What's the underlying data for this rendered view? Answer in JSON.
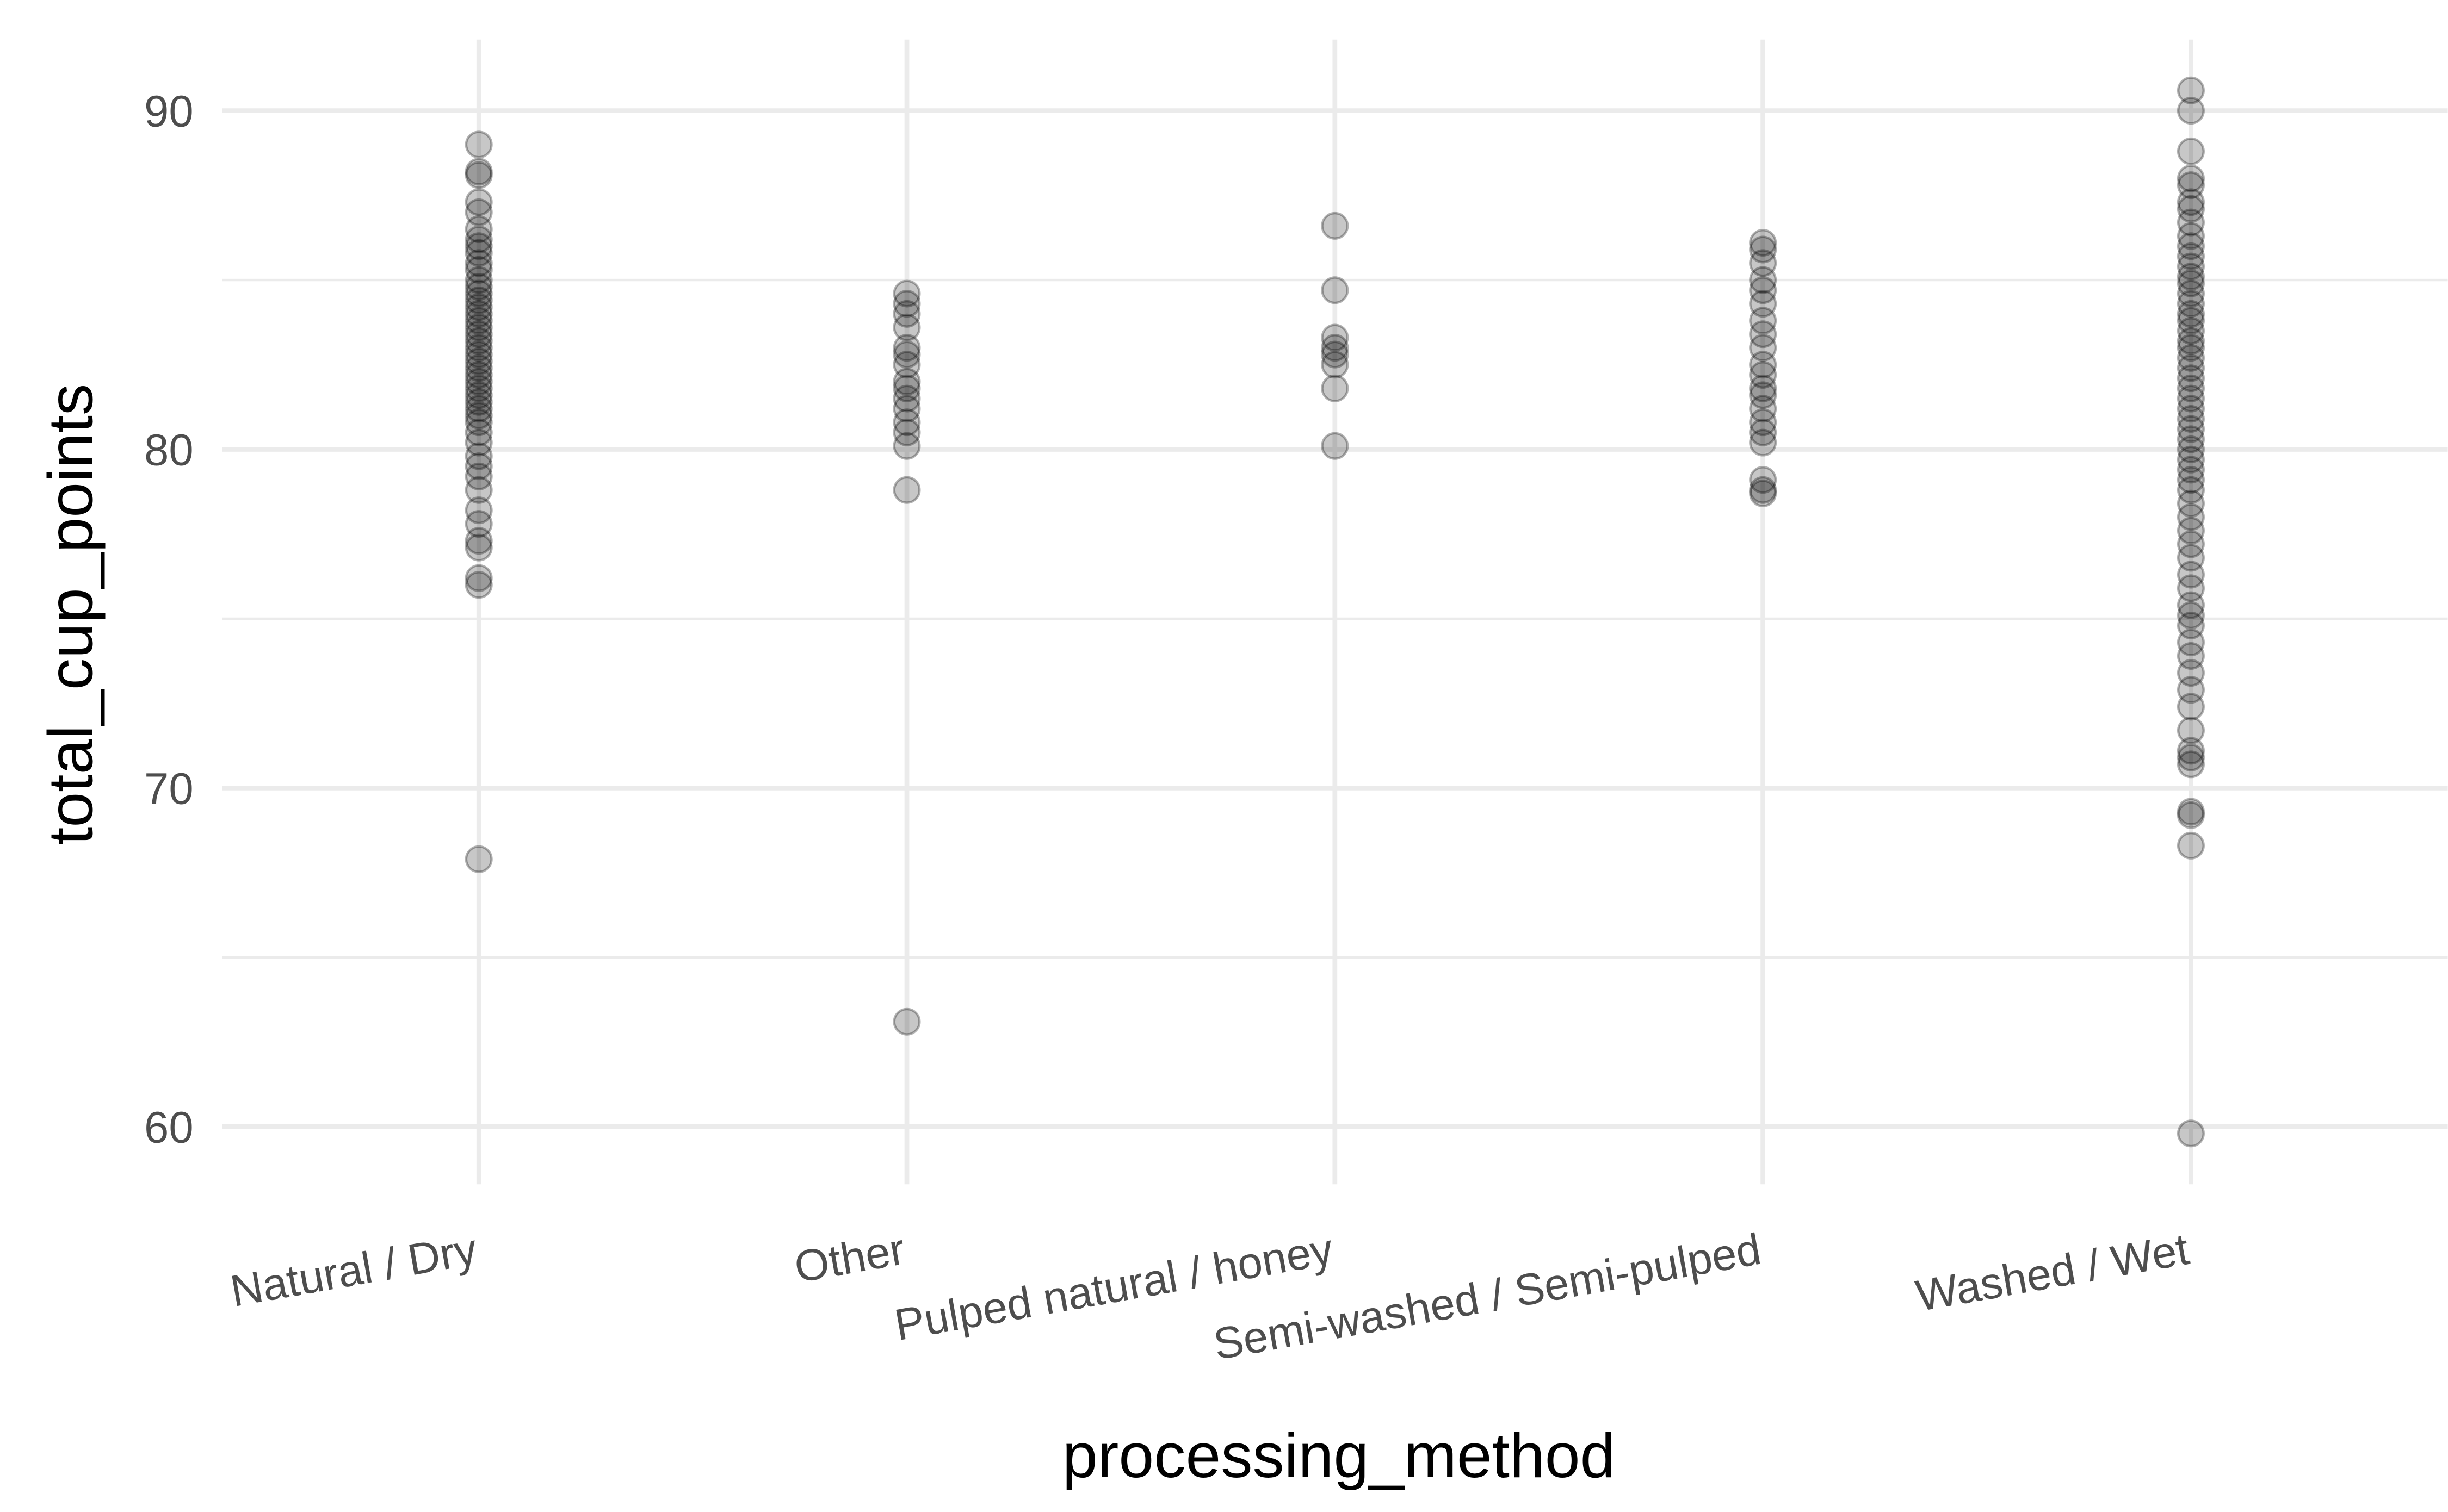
{
  "chart_data": {
    "type": "strip",
    "x_label": "processing_method",
    "y_label": "total_cup_points",
    "categories": [
      "Natural / Dry",
      "Other",
      "Pulped natural / honey",
      "Semi-washed / Semi-pulped",
      "Washed / Wet"
    ],
    "values": [
      [
        89.0,
        88.2,
        88.1,
        87.3,
        87.0,
        86.5,
        86.2,
        86.0,
        85.8,
        85.5,
        85.3,
        85.0,
        84.8,
        84.6,
        84.4,
        84.2,
        84.0,
        83.8,
        83.6,
        83.4,
        83.2,
        83.0,
        82.8,
        82.6,
        82.4,
        82.2,
        82.0,
        81.8,
        81.6,
        81.4,
        81.2,
        81.0,
        80.8,
        80.5,
        80.2,
        79.8,
        79.5,
        79.2,
        78.8,
        78.2,
        77.8,
        77.3,
        77.1,
        76.2,
        76.0,
        67.9
      ],
      [
        84.6,
        84.3,
        84.0,
        83.6,
        83.0,
        82.8,
        82.5,
        82.0,
        81.8,
        81.5,
        81.2,
        80.8,
        80.5,
        80.1,
        78.8,
        63.1
      ],
      [
        86.6,
        84.7,
        83.3,
        83.0,
        82.8,
        82.5,
        81.8,
        80.1
      ],
      [
        86.1,
        85.9,
        85.5,
        85.0,
        84.7,
        84.3,
        83.8,
        83.4,
        83.0,
        82.5,
        82.2,
        81.8,
        81.6,
        81.2,
        80.8,
        80.5,
        80.2,
        79.1,
        78.8,
        78.7
      ],
      [
        90.6,
        90.0,
        88.8,
        88.0,
        87.8,
        87.3,
        87.1,
        86.7,
        86.3,
        86.0,
        85.7,
        85.4,
        85.1,
        84.9,
        84.6,
        84.3,
        84.0,
        83.8,
        83.5,
        83.2,
        83.0,
        82.7,
        82.4,
        82.1,
        81.8,
        81.5,
        81.2,
        80.9,
        80.6,
        80.3,
        80.0,
        79.7,
        79.4,
        79.1,
        78.8,
        78.4,
        78.0,
        77.6,
        77.2,
        76.8,
        76.3,
        75.9,
        75.4,
        75.1,
        74.8,
        74.3,
        73.9,
        73.4,
        72.9,
        72.4,
        71.7,
        71.1,
        70.9,
        70.7,
        69.3,
        69.2,
        68.3,
        59.8
      ]
    ],
    "color": "#000000",
    "ylim": [
      58.3,
      92.1
    ],
    "yticks": [
      60,
      70,
      80,
      90
    ],
    "minor_yticks": [
      65,
      75,
      85
    ],
    "grid": true
  }
}
